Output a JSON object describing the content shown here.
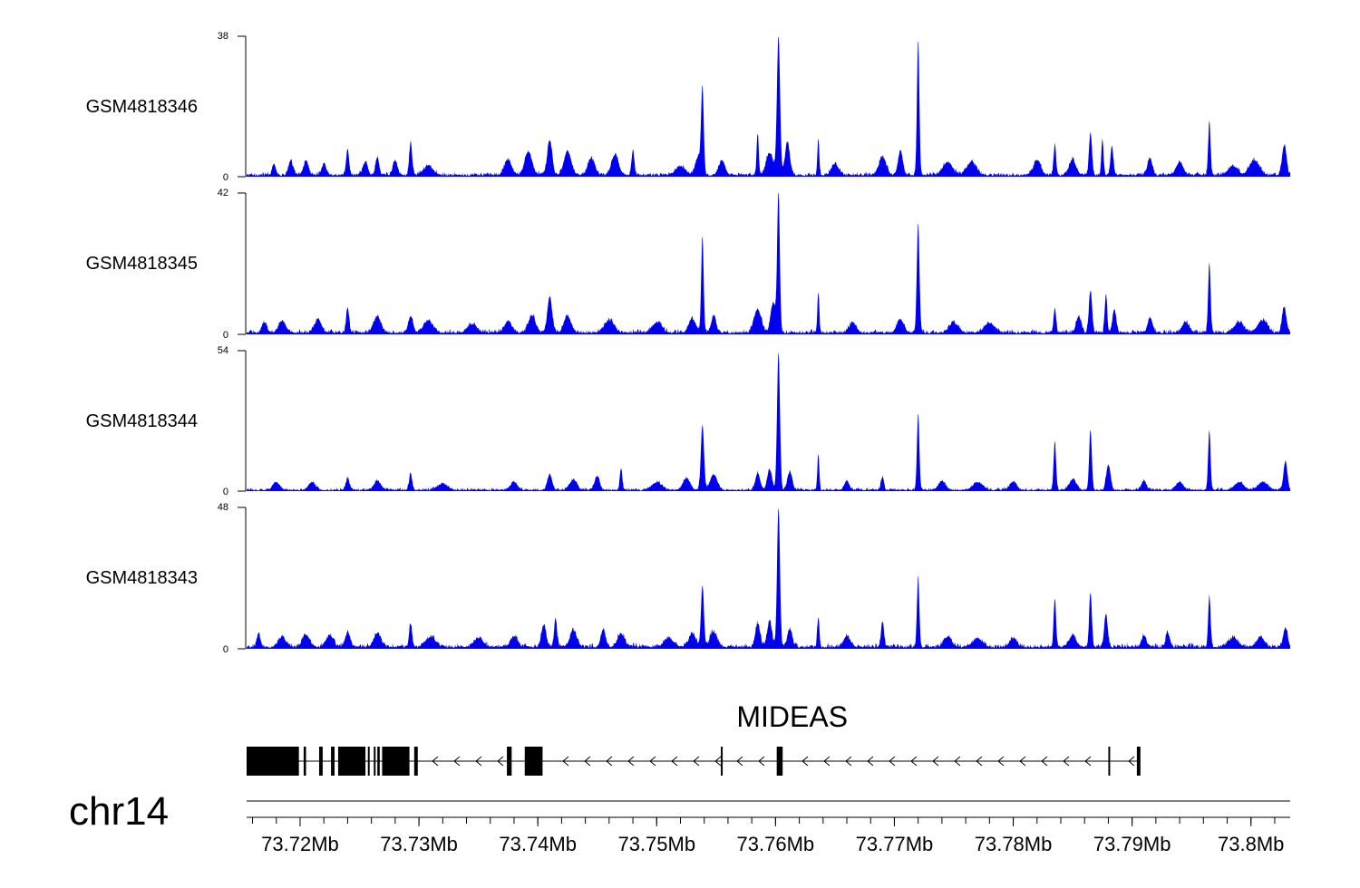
{
  "chart_data": {
    "type": "area",
    "chromosome": "chr14",
    "x_range_mb": [
      73.7155,
      73.8033
    ],
    "colors": {
      "signal": "#0000ee",
      "axis": "#000000",
      "gene": "#000000"
    },
    "tracks": [
      {
        "name": "GSM4818346",
        "ymax": 38,
        "y_tick_labels": [
          "38",
          "0"
        ],
        "baseline": 1.0,
        "bumps": [
          {
            "x": 73.7178,
            "h": 3.2,
            "w": 0.00015
          },
          {
            "x": 73.7192,
            "h": 3.5,
            "w": 0.0002
          },
          {
            "x": 73.7205,
            "h": 4.0,
            "w": 0.0002
          },
          {
            "x": 73.722,
            "h": 3.0,
            "w": 0.0002
          },
          {
            "x": 73.724,
            "h": 7.0,
            "w": 0.00012
          },
          {
            "x": 73.7255,
            "h": 3.5,
            "w": 0.0002
          },
          {
            "x": 73.7265,
            "h": 4.8,
            "w": 0.00015
          },
          {
            "x": 73.728,
            "h": 4.0,
            "w": 0.0002
          },
          {
            "x": 73.7293,
            "h": 8.5,
            "w": 0.00012
          },
          {
            "x": 73.7308,
            "h": 2.5,
            "w": 0.0004
          },
          {
            "x": 73.7375,
            "h": 4.2,
            "w": 0.0003
          },
          {
            "x": 73.7392,
            "h": 6.5,
            "w": 0.0003
          },
          {
            "x": 73.741,
            "h": 9.5,
            "w": 0.0002
          },
          {
            "x": 73.7425,
            "h": 6.5,
            "w": 0.0003
          },
          {
            "x": 73.7445,
            "h": 4.5,
            "w": 0.0003
          },
          {
            "x": 73.7465,
            "h": 5.5,
            "w": 0.0003
          },
          {
            "x": 73.748,
            "h": 6.5,
            "w": 0.00012
          },
          {
            "x": 73.752,
            "h": 2.5,
            "w": 0.0004
          },
          {
            "x": 73.7535,
            "h": 5.0,
            "w": 0.00025
          },
          {
            "x": 73.75385,
            "h": 22.5,
            "w": 0.00011
          },
          {
            "x": 73.7555,
            "h": 4.0,
            "w": 0.00025
          },
          {
            "x": 73.7585,
            "h": 11.0,
            "w": 9e-05
          },
          {
            "x": 73.7595,
            "h": 6.0,
            "w": 0.0003
          },
          {
            "x": 73.76025,
            "h": 37.5,
            "w": 0.00013
          },
          {
            "x": 73.761,
            "h": 9.0,
            "w": 0.0002
          },
          {
            "x": 73.7636,
            "h": 9.5,
            "w": 8e-05
          },
          {
            "x": 73.765,
            "h": 3.0,
            "w": 0.0003
          },
          {
            "x": 73.769,
            "h": 5.0,
            "w": 0.0003
          },
          {
            "x": 73.7705,
            "h": 6.5,
            "w": 0.0002
          },
          {
            "x": 73.772,
            "h": 36.5,
            "w": 0.0001
          },
          {
            "x": 73.7745,
            "h": 3.5,
            "w": 0.0004
          },
          {
            "x": 73.7765,
            "h": 3.5,
            "w": 0.0004
          },
          {
            "x": 73.782,
            "h": 4.0,
            "w": 0.0003
          },
          {
            "x": 73.7835,
            "h": 8.5,
            "w": 0.0001
          },
          {
            "x": 73.785,
            "h": 4.0,
            "w": 0.0003
          },
          {
            "x": 73.7865,
            "h": 11.5,
            "w": 0.00012
          },
          {
            "x": 73.7875,
            "h": 10.0,
            "w": 9e-05
          },
          {
            "x": 73.7883,
            "h": 8.0,
            "w": 0.00012
          },
          {
            "x": 73.7915,
            "h": 4.5,
            "w": 0.0002
          },
          {
            "x": 73.794,
            "h": 3.5,
            "w": 0.0003
          },
          {
            "x": 73.7965,
            "h": 14.0,
            "w": 0.0001
          },
          {
            "x": 73.7985,
            "h": 2.5,
            "w": 0.0004
          },
          {
            "x": 73.8003,
            "h": 4.0,
            "w": 0.0004
          },
          {
            "x": 73.8028,
            "h": 8.0,
            "w": 0.00018
          }
        ]
      },
      {
        "name": "GSM4818345",
        "ymax": 42,
        "y_tick_labels": [
          "42",
          "0"
        ],
        "baseline": 1.2,
        "bumps": [
          {
            "x": 73.717,
            "h": 3.0,
            "w": 0.0002
          },
          {
            "x": 73.7185,
            "h": 3.5,
            "w": 0.0003
          },
          {
            "x": 73.7215,
            "h": 4.0,
            "w": 0.0003
          },
          {
            "x": 73.724,
            "h": 7.5,
            "w": 0.00012
          },
          {
            "x": 73.7265,
            "h": 5.0,
            "w": 0.0003
          },
          {
            "x": 73.7293,
            "h": 5.0,
            "w": 0.0002
          },
          {
            "x": 73.7308,
            "h": 3.5,
            "w": 0.0004
          },
          {
            "x": 73.7345,
            "h": 2.5,
            "w": 0.0004
          },
          {
            "x": 73.7375,
            "h": 3.5,
            "w": 0.0003
          },
          {
            "x": 73.7395,
            "h": 5.0,
            "w": 0.0003
          },
          {
            "x": 73.741,
            "h": 10.5,
            "w": 0.0002
          },
          {
            "x": 73.7425,
            "h": 5.0,
            "w": 0.0003
          },
          {
            "x": 73.746,
            "h": 3.5,
            "w": 0.0004
          },
          {
            "x": 73.75,
            "h": 3.0,
            "w": 0.0004
          },
          {
            "x": 73.753,
            "h": 4.0,
            "w": 0.0003
          },
          {
            "x": 73.75385,
            "h": 29.0,
            "w": 0.0001
          },
          {
            "x": 73.7548,
            "h": 5.0,
            "w": 0.0002
          },
          {
            "x": 73.7585,
            "h": 7.0,
            "w": 0.0003
          },
          {
            "x": 73.76025,
            "h": 41.5,
            "w": 0.00011
          },
          {
            "x": 73.7598,
            "h": 9.0,
            "w": 0.0002
          },
          {
            "x": 73.7636,
            "h": 12.0,
            "w": 8e-05
          },
          {
            "x": 73.7665,
            "h": 3.0,
            "w": 0.0003
          },
          {
            "x": 73.7705,
            "h": 4.0,
            "w": 0.0003
          },
          {
            "x": 73.772,
            "h": 32.0,
            "w": 0.00011
          },
          {
            "x": 73.775,
            "h": 3.0,
            "w": 0.0004
          },
          {
            "x": 73.778,
            "h": 3.0,
            "w": 0.0004
          },
          {
            "x": 73.7835,
            "h": 7.5,
            "w": 0.0001
          },
          {
            "x": 73.7865,
            "h": 12.5,
            "w": 0.00013
          },
          {
            "x": 73.7855,
            "h": 5.0,
            "w": 0.0002
          },
          {
            "x": 73.7878,
            "h": 11.5,
            "w": 0.0001
          },
          {
            "x": 73.7885,
            "h": 7.0,
            "w": 0.00015
          },
          {
            "x": 73.7915,
            "h": 4.5,
            "w": 0.0002
          },
          {
            "x": 73.7945,
            "h": 3.0,
            "w": 0.0003
          },
          {
            "x": 73.7965,
            "h": 21.0,
            "w": 0.0001
          },
          {
            "x": 73.799,
            "h": 3.0,
            "w": 0.0004
          },
          {
            "x": 73.801,
            "h": 3.5,
            "w": 0.0004
          },
          {
            "x": 73.8028,
            "h": 7.5,
            "w": 0.00018
          }
        ]
      },
      {
        "name": "GSM4818344",
        "ymax": 54,
        "y_tick_labels": [
          "54",
          "0"
        ],
        "baseline": 1.0,
        "bumps": [
          {
            "x": 73.718,
            "h": 3.0,
            "w": 0.0003
          },
          {
            "x": 73.721,
            "h": 3.0,
            "w": 0.0003
          },
          {
            "x": 73.724,
            "h": 4.5,
            "w": 0.00015
          },
          {
            "x": 73.7265,
            "h": 3.5,
            "w": 0.0003
          },
          {
            "x": 73.7293,
            "h": 6.5,
            "w": 0.00012
          },
          {
            "x": 73.732,
            "h": 2.5,
            "w": 0.0004
          },
          {
            "x": 73.738,
            "h": 3.0,
            "w": 0.0003
          },
          {
            "x": 73.741,
            "h": 6.0,
            "w": 0.0002
          },
          {
            "x": 73.743,
            "h": 4.0,
            "w": 0.0003
          },
          {
            "x": 73.745,
            "h": 5.5,
            "w": 0.0002
          },
          {
            "x": 73.747,
            "h": 8.5,
            "w": 0.0001
          },
          {
            "x": 73.75,
            "h": 3.0,
            "w": 0.0004
          },
          {
            "x": 73.7525,
            "h": 4.5,
            "w": 0.0003
          },
          {
            "x": 73.75385,
            "h": 25.0,
            "w": 0.00013
          },
          {
            "x": 73.7548,
            "h": 6.0,
            "w": 0.0003
          },
          {
            "x": 73.7585,
            "h": 6.5,
            "w": 0.0002
          },
          {
            "x": 73.7595,
            "h": 8.0,
            "w": 0.0002
          },
          {
            "x": 73.76025,
            "h": 53.5,
            "w": 0.00012
          },
          {
            "x": 73.7612,
            "h": 7.0,
            "w": 0.0002
          },
          {
            "x": 73.7636,
            "h": 14.0,
            "w": 8e-05
          },
          {
            "x": 73.766,
            "h": 3.5,
            "w": 0.0002
          },
          {
            "x": 73.769,
            "h": 5.0,
            "w": 0.00012
          },
          {
            "x": 73.772,
            "h": 29.0,
            "w": 0.0001
          },
          {
            "x": 73.774,
            "h": 3.5,
            "w": 0.0003
          },
          {
            "x": 73.777,
            "h": 3.0,
            "w": 0.0004
          },
          {
            "x": 73.78,
            "h": 3.0,
            "w": 0.0003
          },
          {
            "x": 73.7835,
            "h": 19.0,
            "w": 0.0001
          },
          {
            "x": 73.785,
            "h": 4.0,
            "w": 0.0003
          },
          {
            "x": 73.7865,
            "h": 23.0,
            "w": 0.00011
          },
          {
            "x": 73.788,
            "h": 9.5,
            "w": 0.00018
          },
          {
            "x": 73.791,
            "h": 3.5,
            "w": 0.0002
          },
          {
            "x": 73.794,
            "h": 3.0,
            "w": 0.0003
          },
          {
            "x": 73.7965,
            "h": 23.0,
            "w": 0.0001
          },
          {
            "x": 73.799,
            "h": 3.0,
            "w": 0.0004
          },
          {
            "x": 73.801,
            "h": 3.0,
            "w": 0.0004
          },
          {
            "x": 73.8029,
            "h": 11.0,
            "w": 0.00016
          }
        ]
      },
      {
        "name": "GSM4818343",
        "ymax": 48,
        "y_tick_labels": [
          "48",
          "0"
        ],
        "baseline": 1.5,
        "bumps": [
          {
            "x": 73.7165,
            "h": 4.0,
            "w": 0.00015
          },
          {
            "x": 73.7185,
            "h": 3.5,
            "w": 0.0003
          },
          {
            "x": 73.7205,
            "h": 4.0,
            "w": 0.0003
          },
          {
            "x": 73.7225,
            "h": 4.0,
            "w": 0.0003
          },
          {
            "x": 73.724,
            "h": 5.0,
            "w": 0.0002
          },
          {
            "x": 73.7265,
            "h": 4.5,
            "w": 0.0003
          },
          {
            "x": 73.7293,
            "h": 8.0,
            "w": 0.00012
          },
          {
            "x": 73.731,
            "h": 3.5,
            "w": 0.0004
          },
          {
            "x": 73.735,
            "h": 3.0,
            "w": 0.0004
          },
          {
            "x": 73.738,
            "h": 3.5,
            "w": 0.0003
          },
          {
            "x": 73.7405,
            "h": 7.5,
            "w": 0.0002
          },
          {
            "x": 73.7415,
            "h": 9.5,
            "w": 0.00012
          },
          {
            "x": 73.743,
            "h": 5.5,
            "w": 0.0003
          },
          {
            "x": 73.7455,
            "h": 6.0,
            "w": 0.0002
          },
          {
            "x": 73.747,
            "h": 4.5,
            "w": 0.0003
          },
          {
            "x": 73.751,
            "h": 3.0,
            "w": 0.0004
          },
          {
            "x": 73.753,
            "h": 4.5,
            "w": 0.0003
          },
          {
            "x": 73.75385,
            "h": 21.0,
            "w": 0.00012
          },
          {
            "x": 73.7548,
            "h": 5.0,
            "w": 0.0003
          },
          {
            "x": 73.7585,
            "h": 8.0,
            "w": 0.0002
          },
          {
            "x": 73.7595,
            "h": 9.0,
            "w": 0.0002
          },
          {
            "x": 73.76025,
            "h": 47.5,
            "w": 0.00012
          },
          {
            "x": 73.7612,
            "h": 6.0,
            "w": 0.0002
          },
          {
            "x": 73.7636,
            "h": 10.0,
            "w": 9e-05
          },
          {
            "x": 73.766,
            "h": 3.5,
            "w": 0.0003
          },
          {
            "x": 73.769,
            "h": 8.5,
            "w": 0.00012
          },
          {
            "x": 73.772,
            "h": 23.0,
            "w": 0.0001
          },
          {
            "x": 73.7745,
            "h": 3.5,
            "w": 0.0003
          },
          {
            "x": 73.777,
            "h": 3.0,
            "w": 0.0004
          },
          {
            "x": 73.78,
            "h": 3.0,
            "w": 0.0003
          },
          {
            "x": 73.7835,
            "h": 16.5,
            "w": 0.0001
          },
          {
            "x": 73.785,
            "h": 4.0,
            "w": 0.0003
          },
          {
            "x": 73.7865,
            "h": 18.5,
            "w": 0.00011
          },
          {
            "x": 73.7878,
            "h": 11.0,
            "w": 0.00015
          },
          {
            "x": 73.791,
            "h": 4.0,
            "w": 0.0002
          },
          {
            "x": 73.793,
            "h": 5.0,
            "w": 0.00015
          },
          {
            "x": 73.7965,
            "h": 17.5,
            "w": 0.0001
          },
          {
            "x": 73.7985,
            "h": 3.0,
            "w": 0.0004
          },
          {
            "x": 73.8008,
            "h": 3.5,
            "w": 0.0003
          },
          {
            "x": 73.8029,
            "h": 6.5,
            "w": 0.00018
          }
        ]
      }
    ],
    "gene": {
      "name": "MIDEAS",
      "strand": "-",
      "start_mb": 73.7155,
      "end_mb": 73.7907,
      "exons_mb": [
        [
          73.7155,
          73.7199
        ],
        [
          73.7203,
          73.7205
        ],
        [
          73.7216,
          73.7219
        ],
        [
          73.7226,
          73.7229
        ],
        [
          73.7232,
          73.7255
        ],
        [
          73.7257,
          73.7258
        ],
        [
          73.7262,
          73.7263
        ],
        [
          73.7265,
          73.7267
        ],
        [
          73.7269,
          73.7292
        ],
        [
          73.7296,
          73.7299
        ],
        [
          73.7374,
          73.7378
        ],
        [
          73.7389,
          73.7404
        ],
        [
          73.7554,
          73.7555
        ],
        [
          73.7601,
          73.7606
        ],
        [
          73.788,
          73.7881
        ],
        [
          73.7904,
          73.7907
        ]
      ]
    },
    "x_ticks": [
      {
        "pos": 73.72,
        "label": "73.72Mb"
      },
      {
        "pos": 73.73,
        "label": "73.73Mb"
      },
      {
        "pos": 73.74,
        "label": "73.74Mb"
      },
      {
        "pos": 73.75,
        "label": "73.75Mb"
      },
      {
        "pos": 73.76,
        "label": "73.76Mb"
      },
      {
        "pos": 73.77,
        "label": "73.77Mb"
      },
      {
        "pos": 73.78,
        "label": "73.78Mb"
      },
      {
        "pos": 73.79,
        "label": "73.79Mb"
      },
      {
        "pos": 73.8,
        "label": "73.8Mb"
      }
    ],
    "minor_tick_step_mb": 0.002
  }
}
